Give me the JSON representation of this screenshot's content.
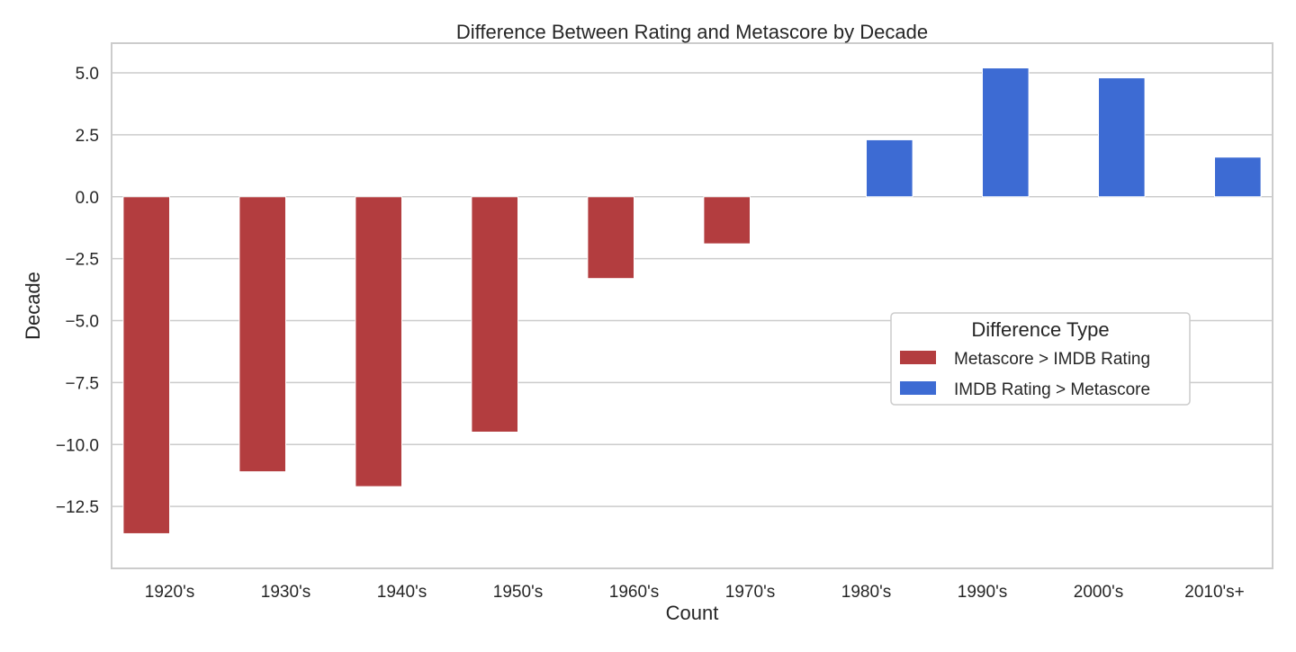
{
  "chart_data": {
    "type": "bar",
    "title": "Difference Between Rating and Metascore by Decade",
    "xlabel": "Count",
    "ylabel": "Decade",
    "categories": [
      "1920's",
      "1930's",
      "1940's",
      "1950's",
      "1960's",
      "1970's",
      "1980's",
      "1990's",
      "2000's",
      "2010's+"
    ],
    "ylim": [
      -15.0,
      6.2
    ],
    "yticks": [
      5.0,
      2.5,
      0.0,
      -2.5,
      -5.0,
      -7.5,
      -10.0,
      -12.5
    ],
    "ytick_labels": [
      "5.0",
      "2.5",
      "0.0",
      "−2.5",
      "−5.0",
      "−7.5",
      "−10.0",
      "−12.5"
    ],
    "grid": true,
    "legend": {
      "title": "Difference Type",
      "placement": "center-right"
    },
    "series": [
      {
        "name": "Metascore > IMDB Rating",
        "color": "#b33d3f",
        "values": [
          -13.6,
          -11.1,
          -11.7,
          -9.5,
          -3.3,
          -1.9,
          null,
          null,
          null,
          null
        ]
      },
      {
        "name": "IMDB Rating > Metascore",
        "color": "#3d6bd3",
        "values": [
          null,
          null,
          null,
          null,
          null,
          null,
          2.3,
          5.2,
          4.8,
          1.6
        ]
      }
    ]
  }
}
